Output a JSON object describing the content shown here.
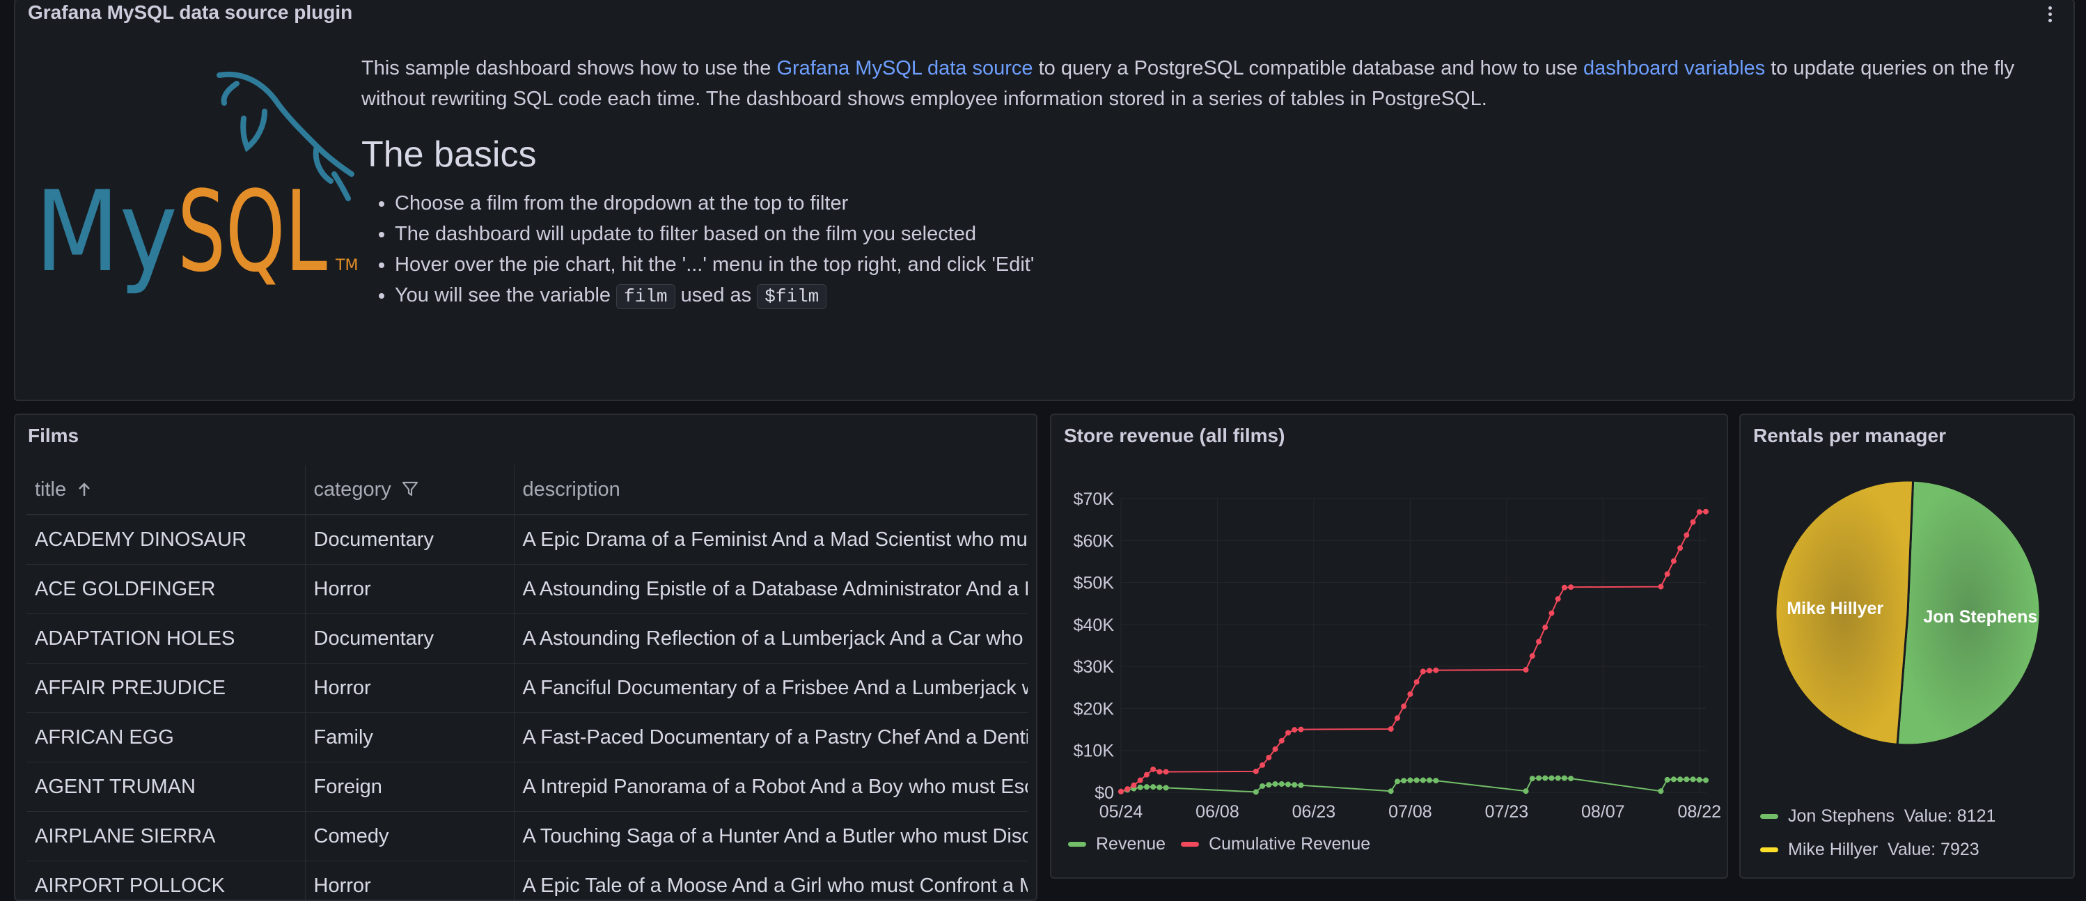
{
  "info_panel": {
    "title": "Grafana MySQL data source plugin",
    "intro_prefix": "This sample dashboard shows how to use the ",
    "intro_link1": "Grafana MySQL data source",
    "intro_mid": " to query a PostgreSQL compatible database and how to use ",
    "intro_link2": "dashboard variables",
    "intro_suffix": " to update queries on the fly without rewriting SQL code each time. The dashboard shows employee information stored in a series of tables in PostgreSQL.",
    "basics_heading": "The basics",
    "bullets": [
      "Choose a film from the dropdown at the top to filter",
      "The dashboard will update to filter based on the film you selected",
      "Hover over the pie chart, hit the '...' menu in the top right, and click 'Edit'"
    ],
    "bullet4_prefix": "You will see the variable ",
    "bullet4_code1": "film",
    "bullet4_mid": " used as ",
    "bullet4_code2": "$film",
    "logo_text": "MySQL",
    "logo_tm": "TM",
    "colors": {
      "link": "#6e9fff",
      "logo_blue": "#2e7b9a",
      "logo_orange": "#e48e29"
    }
  },
  "films_panel": {
    "title": "Films",
    "columns": [
      "title",
      "category",
      "description"
    ],
    "sort_icon": "arrow-up-icon",
    "filter_icon": "filter-icon",
    "rows": [
      [
        "ACADEMY DINOSAUR",
        "Documentary",
        "A Epic Drama of a Feminist And a Mad Scientist who must Battle a Teacher in The Canadian Rockies"
      ],
      [
        "ACE GOLDFINGER",
        "Horror",
        "A Astounding Epistle of a Database Administrator And a Explorer who must Find a Car in Ancient China"
      ],
      [
        "ADAPTATION HOLES",
        "Documentary",
        "A Astounding Reflection of a Lumberjack And a Car who must Sink a Lumberjack in A Baloon Factory"
      ],
      [
        "AFFAIR PREJUDICE",
        "Horror",
        "A Fanciful Documentary of a Frisbee And a Lumberjack who must Chase a Monkey in A Shark Tank"
      ],
      [
        "AFRICAN EGG",
        "Family",
        "A Fast-Paced Documentary of a Pastry Chef And a Dentist who must Pursue a Forensic Psychologist in The Gulf of Mexico"
      ],
      [
        "AGENT TRUMAN",
        "Foreign",
        "A Intrepid Panorama of a Robot And a Boy who must Escape a Sumo Wrestler in Ancient China"
      ],
      [
        "AIRPLANE SIERRA",
        "Comedy",
        "A Touching Saga of a Hunter And a Butler who must Discover a Butler in A Jet Boat"
      ],
      [
        "AIRPORT POLLOCK",
        "Horror",
        "A Epic Tale of a Moose And a Girl who must Confront a Monkey in Ancient India"
      ]
    ]
  },
  "revenue_panel": {
    "title": "Store revenue (all films)",
    "legend": [
      "Revenue",
      "Cumulative Revenue"
    ],
    "colors": {
      "revenue": "#73bf69",
      "cumulative": "#f2495c"
    }
  },
  "rentals_panel": {
    "title": "Rentals per manager",
    "legend_value_label": "Value:",
    "colors": {
      "jon": "#73bf69",
      "mike": "#fade2a"
    }
  },
  "chart_data": [
    {
      "type": "line",
      "title": "Store revenue (all films)",
      "x_tick_labels": [
        "05/24",
        "06/08",
        "06/23",
        "07/08",
        "07/23",
        "08/07",
        "08/22"
      ],
      "y_tick_labels": [
        "$0",
        "$10K",
        "$20K",
        "$30K",
        "$40K",
        "$50K",
        "$60K",
        "$70K"
      ],
      "ylim": [
        0,
        70000
      ],
      "x": [
        "2005-05-24",
        "2005-05-25",
        "2005-05-26",
        "2005-05-27",
        "2005-05-28",
        "2005-05-29",
        "2005-05-30",
        "2005-05-31",
        "2005-06-14",
        "2005-06-15",
        "2005-06-16",
        "2005-06-17",
        "2005-06-18",
        "2005-06-19",
        "2005-06-20",
        "2005-06-21",
        "2005-07-05",
        "2005-07-06",
        "2005-07-07",
        "2005-07-08",
        "2005-07-09",
        "2005-07-10",
        "2005-07-11",
        "2005-07-12",
        "2005-07-26",
        "2005-07-27",
        "2005-07-28",
        "2005-07-29",
        "2005-07-30",
        "2005-07-31",
        "2005-08-01",
        "2005-08-02",
        "2005-08-16",
        "2005-08-17",
        "2005-08-18",
        "2005-08-19",
        "2005-08-20",
        "2005-08-21",
        "2005-08-22",
        "2005-08-23"
      ],
      "series": [
        {
          "name": "Revenue",
          "values": [
            200,
            600,
            900,
            1200,
            1300,
            1300,
            1200,
            1100,
            100,
            1500,
            1800,
            2000,
            2000,
            1900,
            1800,
            1700,
            300,
            2600,
            2800,
            2900,
            2900,
            2900,
            2900,
            2800,
            300,
            3300,
            3400,
            3400,
            3400,
            3400,
            3400,
            3300,
            300,
            3000,
            3100,
            3100,
            3100,
            3100,
            3000,
            2900
          ]
        },
        {
          "name": "Cumulative Revenue",
          "values": [
            200,
            800,
            1700,
            2900,
            4200,
            5500,
            4900,
            4900,
            5000,
            6500,
            8300,
            10300,
            12300,
            14200,
            14900,
            15000,
            15100,
            17700,
            20500,
            23400,
            26300,
            28800,
            29000,
            29100,
            29200,
            32500,
            35900,
            39300,
            42700,
            46100,
            48800,
            48900,
            49000,
            52000,
            55100,
            58200,
            61300,
            64400,
            66800,
            66900
          ]
        }
      ]
    },
    {
      "type": "pie",
      "title": "Rentals per manager",
      "labels": [
        "Jon Stephens",
        "Mike Hillyer"
      ],
      "values": [
        8121,
        7923
      ]
    }
  ]
}
